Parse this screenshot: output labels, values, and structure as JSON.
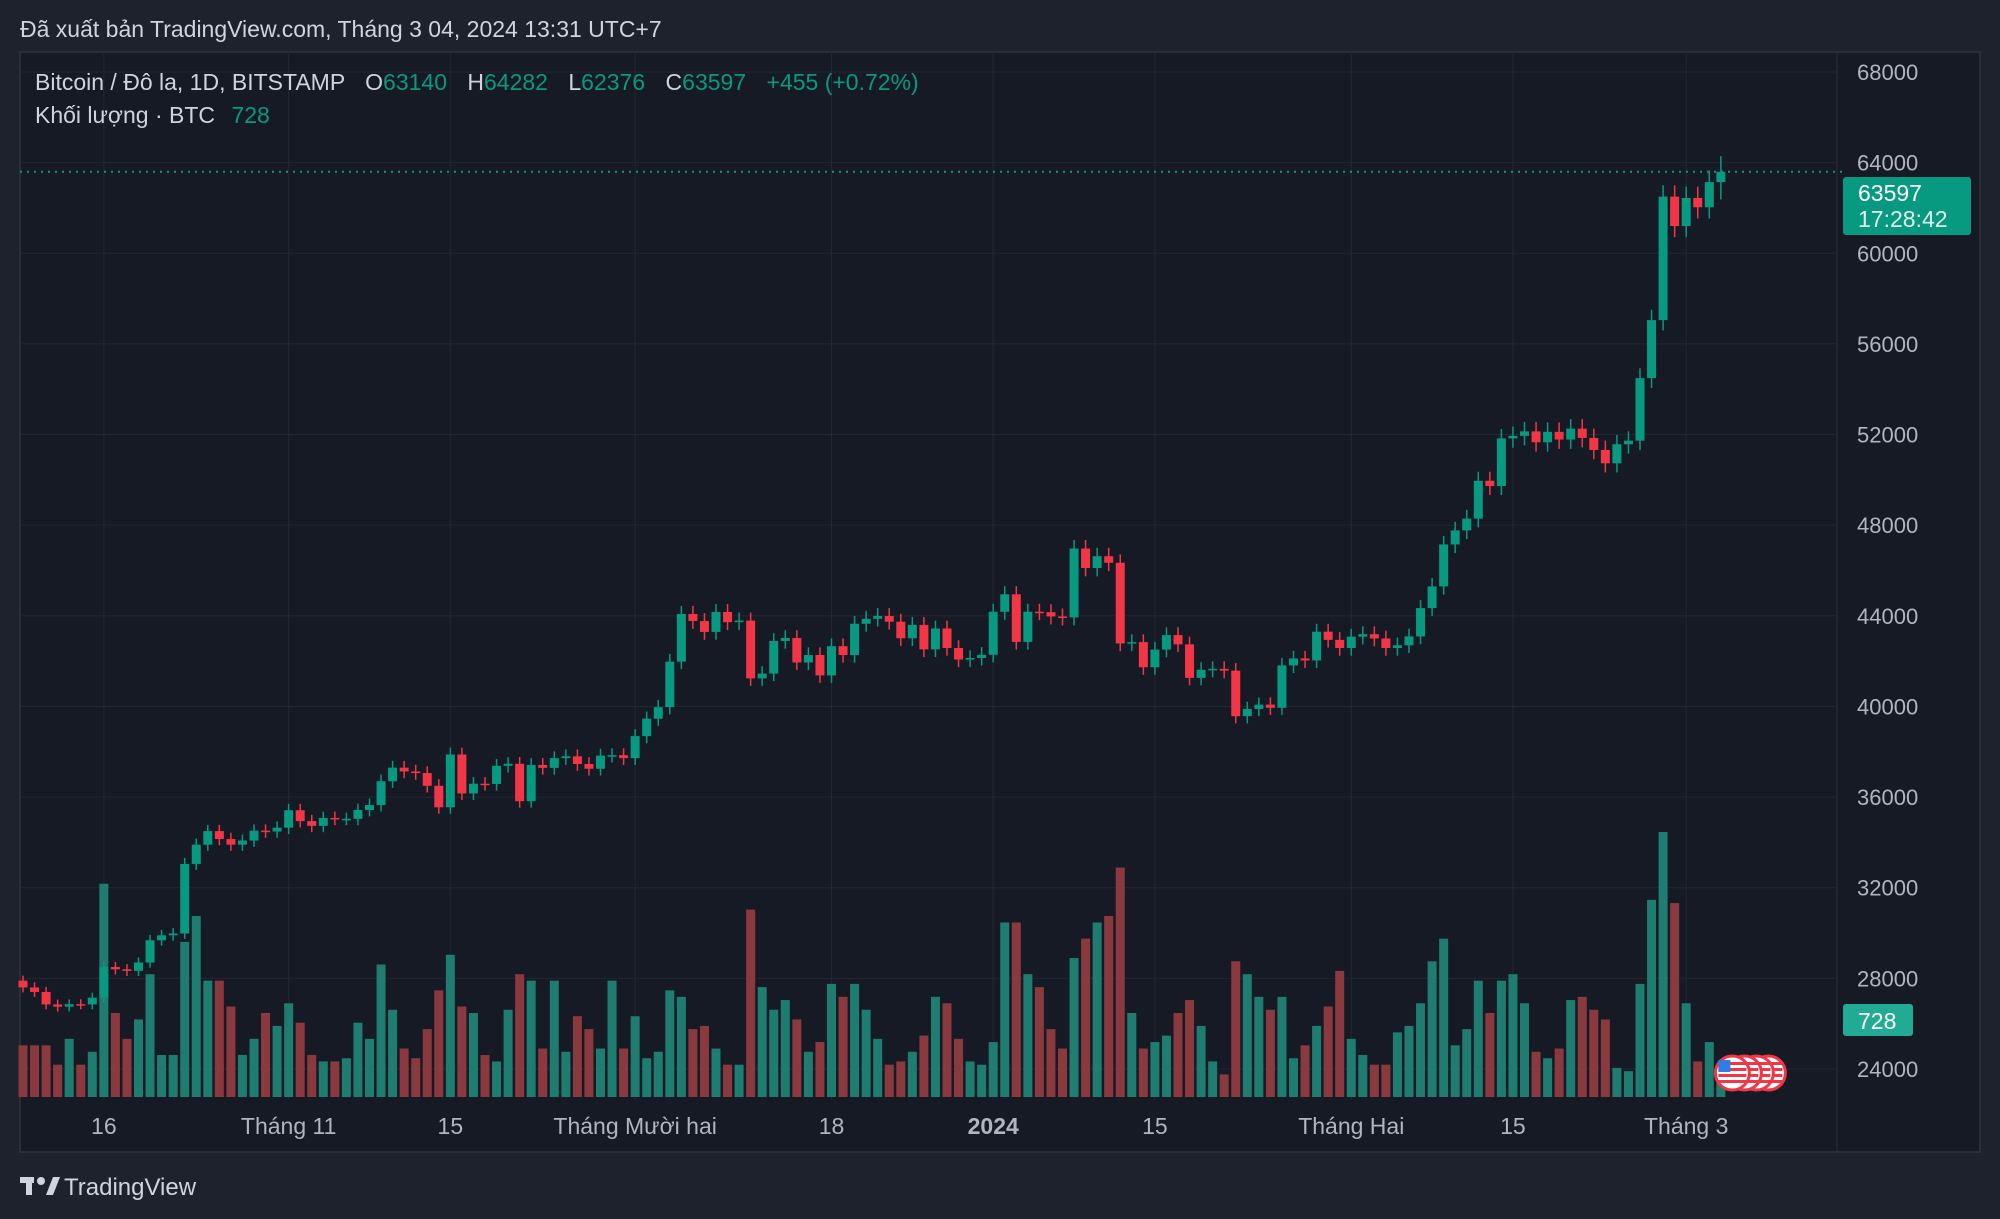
{
  "published": "Đã xuất bản TradingView.com, Tháng 3 04, 2024 13:31 UTC+7",
  "legend": {
    "symbol": "Bitcoin / Đô la, 1D, BITSTAMP",
    "o_label": "O",
    "o": "63140",
    "h_label": "H",
    "h": "64282",
    "l_label": "L",
    "l": "62376",
    "c_label": "C",
    "c": "63597",
    "change": "+455 (+0.72%)",
    "volume_label": "Khối lượng · BTC",
    "volume": "728"
  },
  "last_price_tag": {
    "price": "63597",
    "countdown": "17:28:42"
  },
  "volume_tag": "728",
  "brand": "TradingView",
  "colors": {
    "up": "#089981",
    "down": "#f23645",
    "vol_up": "#1f7c70",
    "vol_down": "#8a3a3e",
    "bg": "#161a25",
    "frame": "#1e222d",
    "text": "#d1d4dc"
  },
  "chart_data": {
    "type": "candlestick",
    "title": "Bitcoin / Đô la, 1D, BITSTAMP",
    "start_date": "2023-10-09",
    "end_date": "2024-03-04",
    "ylim": [
      24000,
      68000
    ],
    "yticks": [
      "68000",
      "64000",
      "60000",
      "56000",
      "52000",
      "48000",
      "44000",
      "40000",
      "36000",
      "32000",
      "28000",
      "24000"
    ],
    "xticks": [
      {
        "label": "16",
        "date": "2023-10-16",
        "bold": false
      },
      {
        "label": "Tháng 11",
        "date": "2023-11-01",
        "bold": false
      },
      {
        "label": "15",
        "date": "2023-11-15",
        "bold": false
      },
      {
        "label": "Tháng Mười hai",
        "date": "2023-12-01",
        "bold": false
      },
      {
        "label": "18",
        "date": "2023-12-18",
        "bold": false
      },
      {
        "label": "2024",
        "date": "2024-01-01",
        "bold": true
      },
      {
        "label": "15",
        "date": "2024-01-15",
        "bold": false
      },
      {
        "label": "Tháng Hai",
        "date": "2024-02-01",
        "bold": false
      },
      {
        "label": "15",
        "date": "2024-02-15",
        "bold": false
      },
      {
        "label": "Tháng 3",
        "date": "2024-03-01",
        "bold": false
      }
    ],
    "grid": true,
    "first_open": 27900,
    "close": [
      27600,
      27400,
      26850,
      26750,
      26860,
      26850,
      27150,
      28500,
      28400,
      28330,
      28700,
      29680,
      29900,
      29980,
      33050,
      33900,
      34500,
      34150,
      33900,
      34080,
      34520,
      34480,
      34650,
      35420,
      34940,
      34730,
      35080,
      35040,
      35040,
      35430,
      35650,
      36700,
      37300,
      37130,
      37060,
      36500,
      35550,
      37880,
      36160,
      36590,
      36580,
      37380,
      37470,
      35820,
      37420,
      37290,
      37720,
      37800,
      37460,
      37250,
      37830,
      37850,
      37720,
      38690,
      39460,
      39970,
      41980,
      44080,
      43770,
      43290,
      44170,
      43720,
      43790,
      41240,
      41450,
      42890,
      43020,
      41940,
      42270,
      41370,
      42660,
      42270,
      43650,
      43870,
      43990,
      43740,
      43010,
      43600,
      42520,
      43440,
      42580,
      42070,
      42140,
      42280,
      44180,
      44950,
      42850,
      44180,
      44160,
      43970,
      43930,
      46970,
      46110,
      46630,
      46340,
      42780,
      42840,
      41730,
      42510,
      43150,
      42740,
      41260,
      41620,
      41660,
      41580,
      39570,
      39890,
      40080,
      39940,
      41810,
      42120,
      42030,
      43300,
      42940,
      42580,
      43080,
      43190,
      43000,
      42580,
      42700,
      43090,
      44340,
      45300,
      47150,
      47770,
      48290,
      49960,
      49730,
      51830,
      51940,
      52140,
      51660,
      52120,
      51780,
      52260,
      51850,
      51320,
      50730,
      51570,
      51730,
      54490,
      57050,
      62500,
      61200,
      62440,
      62030,
      63140,
      63597
    ],
    "last_high": 64282,
    "last_low": 62376,
    "volume": [
      1600,
      1600,
      1600,
      1000,
      1800,
      1000,
      1400,
      6600,
      2600,
      1800,
      2400,
      3800,
      1300,
      1300,
      4800,
      5600,
      3600,
      3600,
      2800,
      1300,
      1800,
      2600,
      2200,
      2900,
      2300,
      1300,
      1100,
      1100,
      1200,
      2300,
      1800,
      4100,
      2700,
      1500,
      1200,
      2100,
      3300,
      4400,
      2800,
      2600,
      1300,
      1100,
      2700,
      3800,
      3600,
      1500,
      3600,
      1400,
      2500,
      2100,
      1500,
      3600,
      1500,
      2500,
      1200,
      1400,
      3300,
      3100,
      2100,
      2200,
      1500,
      1000,
      1000,
      5800,
      3400,
      2700,
      3000,
      2400,
      1400,
      1700,
      3500,
      3100,
      3500,
      2700,
      1800,
      1000,
      1100,
      1400,
      1900,
      3100,
      2900,
      1800,
      1100,
      1000,
      1700,
      5400,
      5400,
      3800,
      3400,
      2100,
      1500,
      4300,
      4900,
      5400,
      5600,
      7100,
      2600,
      1500,
      1700,
      1900,
      2600,
      3000,
      2200,
      1100,
      700,
      4200,
      3800,
      3100,
      2700,
      3100,
      1200,
      1600,
      2200,
      2800,
      3900,
      1800,
      1300,
      1000,
      1000,
      2000,
      2200,
      2900,
      4200,
      4900,
      1600,
      2100,
      3600,
      2600,
      3600,
      3800,
      2900,
      1400,
      1200,
      1500,
      3000,
      3100,
      2700,
      2400,
      900,
      800,
      3500,
      6100,
      8200,
      6000,
      2900,
      1100,
      1700,
      728
    ],
    "events": [
      {
        "icon": "us-flag-icon",
        "count": 4,
        "date": "2024-03-05"
      }
    ]
  }
}
